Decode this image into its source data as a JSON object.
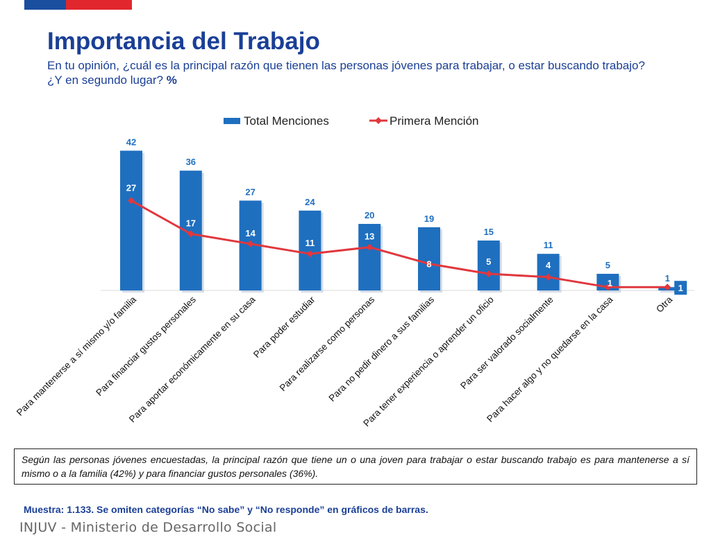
{
  "header": {
    "title": "Importancia del Trabajo",
    "subtitle": "En tu opinión, ¿cuál es la principal razón que tienen las personas jóvenes para trabajar, o estar buscando trabajo? ¿Y en segundo lugar?",
    "unit": "%"
  },
  "colors": {
    "bar": "#1f6fbf",
    "line": "#e0383e",
    "bar_label": "#1f6fbf",
    "title": "#1a3f96"
  },
  "chart_data": {
    "type": "bar",
    "categories": [
      "Para mantenerse a sí mismo y/o familia",
      "Para financiar gustos personales",
      "Para aportar económicamente en su casa",
      "Para poder estudiar",
      "Para realizarse como personas",
      "Para no pedir dinero a sus familias",
      "Para tener experiencia o aprender un oficio",
      "Para ser valorado socialmente",
      "Para hacer algo y no quedarse en la casa",
      "Otra"
    ],
    "series": [
      {
        "name": "Total Menciones",
        "type": "bar",
        "values": [
          42,
          36,
          27,
          24,
          20,
          19,
          15,
          11,
          5,
          1
        ]
      },
      {
        "name": "Primera Mención",
        "type": "line",
        "values": [
          27,
          17,
          14,
          11,
          13,
          8,
          5,
          4,
          1,
          1
        ]
      }
    ],
    "legend": "top-center",
    "grid": false
  },
  "note": "Según las personas jóvenes encuestadas, la principal razón que tiene un o una joven para trabajar o estar buscando trabajo es para mantenerse a sí mismo o a la familia (42%) y para financiar gustos personales (36%).",
  "sample": "Muestra: 1.133. Se omiten categorías “No sabe” y “No responde” en gráficos de barras.",
  "footer": "INJUV - Ministerio de Desarrollo Social"
}
